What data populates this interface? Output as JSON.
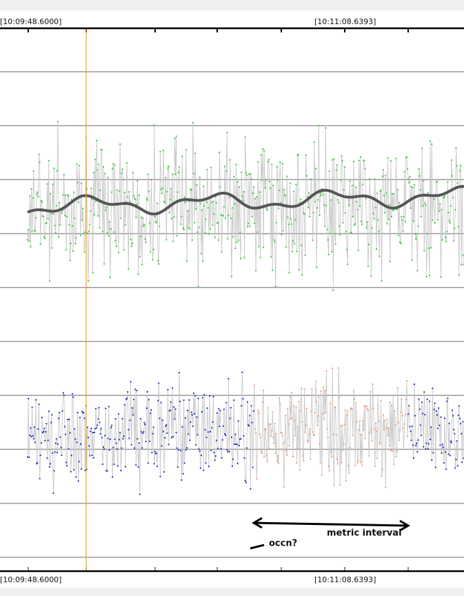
{
  "header": {
    "time_left": "[10:09:48.6000]",
    "time_right": "[10:11:08.6393]"
  },
  "footer": {
    "time_left": "[10:09:48.6000]",
    "time_right": "[10:11:08.6393]"
  },
  "annotations": {
    "interval": "metric interval",
    "note": "occn?"
  }
}
